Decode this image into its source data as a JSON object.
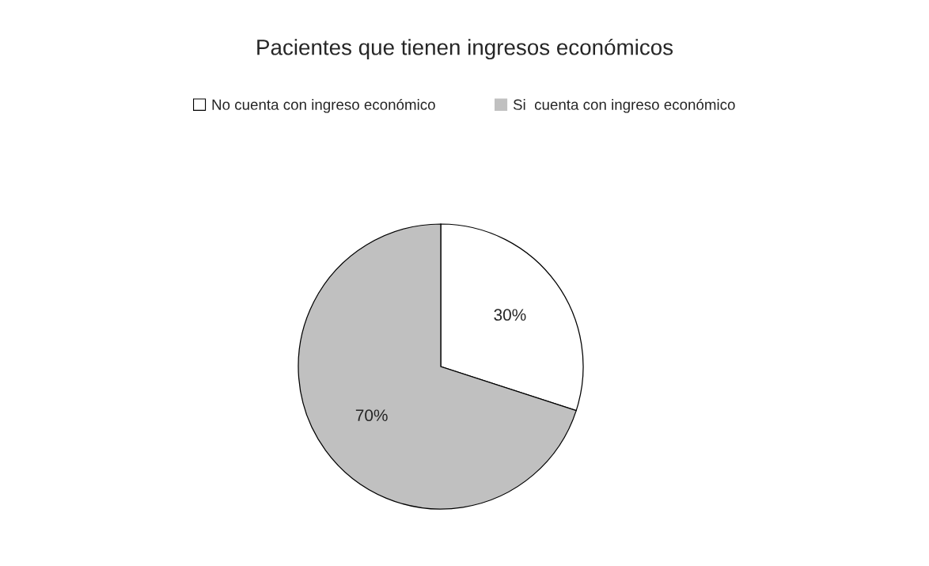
{
  "chart_data": {
    "type": "pie",
    "title": "Pacientes que tienen ingresos económicos",
    "categories": [
      "No cuenta con ingreso económico",
      "Si  cuenta con ingreso económico"
    ],
    "values": [
      30,
      70
    ],
    "colors": [
      "#ffffff",
      "#c0c0c0"
    ],
    "value_labels": [
      "30%",
      "70%"
    ],
    "legend": "top"
  }
}
